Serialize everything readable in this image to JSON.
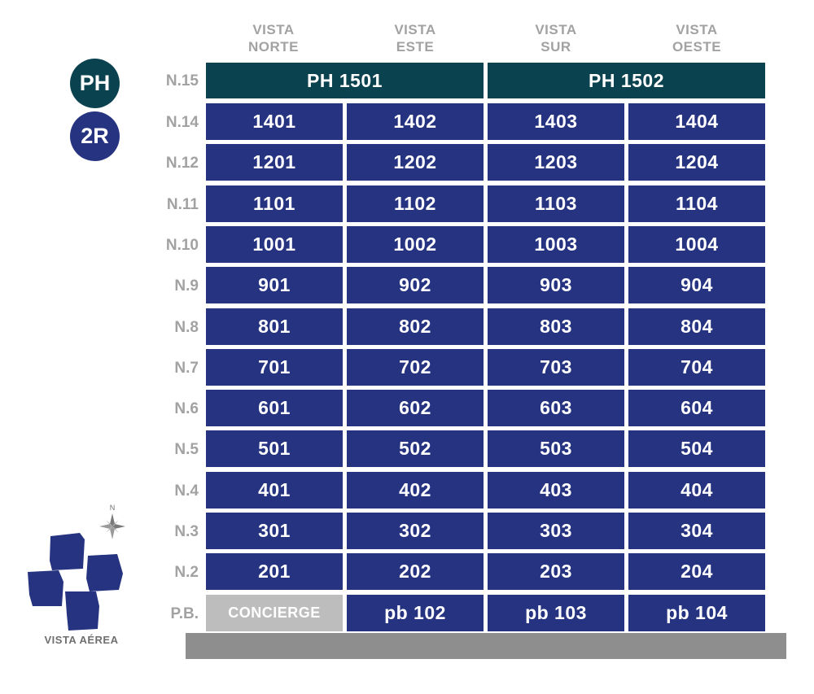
{
  "headers": [
    {
      "line1": "VISTA",
      "line2": "NORTE"
    },
    {
      "line1": "VISTA",
      "line2": "ESTE"
    },
    {
      "line1": "VISTA",
      "line2": "SUR"
    },
    {
      "line1": "VISTA",
      "line2": "OESTE"
    }
  ],
  "legend": {
    "ph": "PH",
    "r2": "2R"
  },
  "colors": {
    "ph": "#0b4250",
    "unit": "#263381",
    "concierge": "#bdbdbd",
    "label": "#a2a2a2",
    "base": "#8e8e8e"
  },
  "penthouse": {
    "floor": "N.15",
    "units": [
      "PH 1501",
      "PH 1502"
    ]
  },
  "floors": [
    {
      "label": "N.14",
      "units": [
        "1401",
        "1402",
        "1403",
        "1404"
      ]
    },
    {
      "label": "N.12",
      "units": [
        "1201",
        "1202",
        "1203",
        "1204"
      ]
    },
    {
      "label": "N.11",
      "units": [
        "1101",
        "1102",
        "1103",
        "1104"
      ]
    },
    {
      "label": "N.10",
      "units": [
        "1001",
        "1002",
        "1003",
        "1004"
      ]
    },
    {
      "label": "N.9",
      "units": [
        "901",
        "902",
        "903",
        "904"
      ]
    },
    {
      "label": "N.8",
      "units": [
        "801",
        "802",
        "803",
        "804"
      ]
    },
    {
      "label": "N.7",
      "units": [
        "701",
        "702",
        "703",
        "704"
      ]
    },
    {
      "label": "N.6",
      "units": [
        "601",
        "602",
        "603",
        "604"
      ]
    },
    {
      "label": "N.5",
      "units": [
        "501",
        "502",
        "503",
        "504"
      ]
    },
    {
      "label": "N.4",
      "units": [
        "401",
        "402",
        "403",
        "404"
      ]
    },
    {
      "label": "N.3",
      "units": [
        "301",
        "302",
        "303",
        "304"
      ]
    },
    {
      "label": "N.2",
      "units": [
        "201",
        "202",
        "203",
        "204"
      ]
    },
    {
      "label": "P.B.",
      "units": [
        "CONCIERGE",
        "pb 102",
        "pb 103",
        "pb 104"
      ]
    }
  ],
  "aerial": {
    "compass": "N",
    "label": "VISTA AÉREA"
  }
}
